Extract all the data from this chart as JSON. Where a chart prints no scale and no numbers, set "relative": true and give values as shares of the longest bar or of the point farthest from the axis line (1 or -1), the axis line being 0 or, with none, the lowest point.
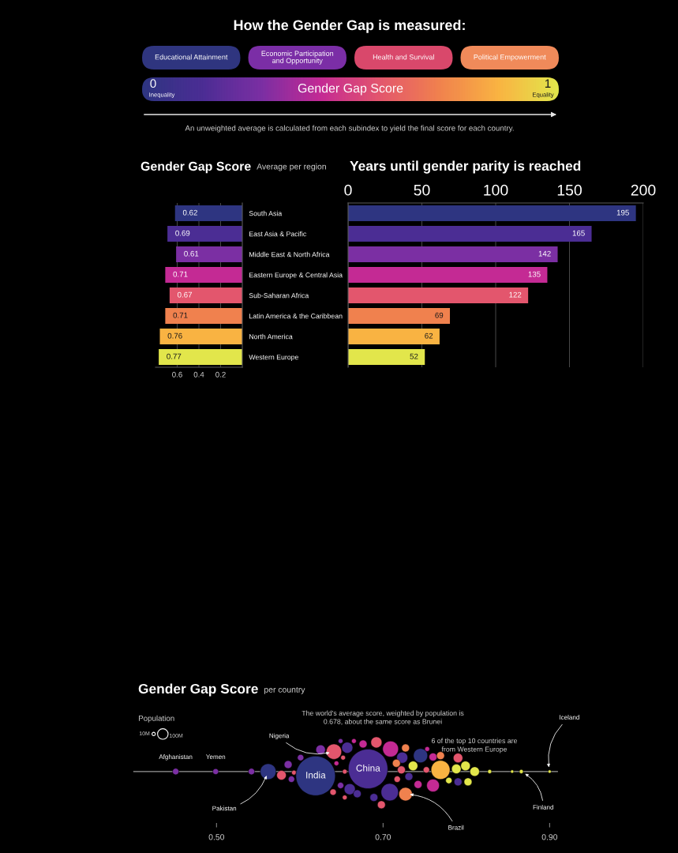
{
  "chart_data": [
    {
      "type": "other",
      "title": "How the Gender Gap is measured:",
      "categories": [
        "Educational Attainment",
        "Economic Participation\nand Opportunity",
        "Health and Survival",
        "Political Empowerment"
      ],
      "colors": [
        "#2f357f",
        "#7b2ea6",
        "#d9486b",
        "#f08a5a"
      ],
      "annotations": [
        "0",
        "Inequality",
        "Gender Gap Score",
        "1",
        "Equality",
        "An unweighted average is calculated from each subindex to yield the final score for each country."
      ]
    },
    {
      "type": "bar",
      "orientation": "horizontal",
      "title": "Gender Gap Score",
      "subtitle": "Average per region",
      "categories": [
        "South Asia",
        "East Asia & Pacific",
        "Middle East & North Africa",
        "Eastern Europe & Central Asia",
        "Sub-Saharan Africa",
        "Latin America & the Caribbean",
        "North America",
        "Western Europe"
      ],
      "values": [
        0.62,
        0.69,
        0.61,
        0.71,
        0.67,
        0.71,
        0.76,
        0.77
      ],
      "colors": [
        "#2e3581",
        "#4b2d94",
        "#7b2fa3",
        "#c42a94",
        "#e3566d",
        "#f0814e",
        "#f9b342",
        "#e2e64b"
      ],
      "xlim": [
        0.8,
        0
      ],
      "xticks": [
        0.6,
        0.4,
        0.2
      ],
      "grid": "x",
      "data_labels": true
    },
    {
      "type": "bar",
      "orientation": "horizontal",
      "title": "Years until gender parity is reached",
      "categories": [
        null,
        null,
        null,
        null,
        null,
        null,
        null,
        null
      ],
      "values": [
        195,
        165,
        142,
        135,
        122,
        69,
        62,
        52
      ],
      "colors": [
        "#2e3581",
        "#4b2d94",
        "#7b2fa3",
        "#c42a94",
        "#e3566d",
        "#f0814e",
        "#f9b342",
        "#e2e64b"
      ],
      "xlim": [
        0,
        200
      ],
      "xticks": [
        0,
        50,
        100,
        150,
        200
      ],
      "grid": "x",
      "data_labels": true
    },
    {
      "type": "bubble",
      "title": "Gender Gap Score",
      "subtitle": "per country",
      "relative": true,
      "tick_labels": "x",
      "legend_title": "Population",
      "size_legend": [
        {
          "value": 10,
          "label": "10M"
        },
        {
          "value": 100,
          "label": "100M"
        }
      ],
      "x": [
        0.451,
        0.499,
        0.542,
        0.562,
        0.578,
        0.586,
        0.59,
        0.601,
        0.593,
        0.619,
        0.641,
        0.625,
        0.649,
        0.657,
        0.652,
        0.644,
        0.654,
        0.64,
        0.649,
        0.66,
        0.654,
        0.669,
        0.682,
        0.692,
        0.676,
        0.665,
        0.709,
        0.727,
        0.723,
        0.745,
        0.708,
        0.727,
        0.689,
        0.698,
        0.716,
        0.717,
        0.731,
        0.736,
        0.742,
        0.752,
        0.76,
        0.76,
        0.769,
        0.753,
        0.769,
        0.79,
        0.788,
        0.799,
        0.81,
        0.802,
        0.79,
        0.779,
        0.828,
        0.855,
        0.866,
        0.9,
        0.722
      ],
      "values": [
        0,
        0,
        0,
        0,
        -0.11,
        0.21,
        -0.23,
        0.42,
        -0.03,
        -0.13,
        0.6,
        0.66,
        0.92,
        0.72,
        0.42,
        0.25,
        0,
        -0.62,
        -0.42,
        -0.53,
        -0.78,
        -0.67,
        0.08,
        0.88,
        0.83,
        0.92,
        0.68,
        0.71,
        0.42,
        0.48,
        -0.62,
        -0.68,
        -0.78,
        -1,
        0.25,
        -0.23,
        -0.15,
        0.17,
        -0.39,
        0.05,
        -0.42,
        0.44,
        0.05,
        0.68,
        0.48,
        0.41,
        0.08,
        0.17,
        0,
        -0.31,
        -0.31,
        -0.27,
        0,
        0,
        0,
        0,
        0.05
      ],
      "sizes": [
        36,
        30,
        36,
        223,
        80,
        56,
        36,
        36,
        20,
        1390,
        210,
        80,
        20,
        109,
        20,
        20,
        20,
        36,
        36,
        109,
        20,
        56,
        1390,
        109,
        56,
        20,
        223,
        56,
        109,
        180,
        270,
        160,
        56,
        56,
        56,
        36,
        56,
        80,
        56,
        36,
        143,
        56,
        320,
        20,
        56,
        80,
        80,
        80,
        80,
        56,
        56,
        36,
        14,
        9,
        14,
        9,
        56
      ],
      "colors": [
        "#7b2fa3",
        "#7b2fa3",
        "#7b2fa3",
        "#2e3581",
        "#e3566d",
        "#7b2fa3",
        "#7b2fa3",
        "#7b2fa3",
        "#e3566d",
        "#2e3581",
        "#e3566d",
        "#7b2fa3",
        "#7b2fa3",
        "#4b2d94",
        "#e3566d",
        "#c42a94",
        "#e3566d",
        "#e3566d",
        "#7b2fa3",
        "#4b2d94",
        "#e3566d",
        "#4b2d94",
        "#4b2d94",
        "#e3566d",
        "#c42a94",
        "#c42a94",
        "#c42a94",
        "#f0814e",
        "#4b2d94",
        "#2e3581",
        "#4b2d94",
        "#f0814e",
        "#4b2d94",
        "#e3566d",
        "#f0814e",
        "#e3566d",
        "#4b2d94",
        "#e2e64b",
        "#c42a94",
        "#e3566d",
        "#c42a94",
        "#c42a94",
        "#f9b342",
        "#c42a94",
        "#f0814e",
        "#e3566d",
        "#e2e64b",
        "#e2e64b",
        "#e2e64b",
        "#e2e64b",
        "#4b2d94",
        "#e2e64b",
        "#e2e64b",
        "#e2e64b",
        "#e2e64b",
        "#e2e64b",
        "#e3566d"
      ],
      "xlim": [
        0.4,
        0.91
      ],
      "xticks": [
        {
          "value": 0.5,
          "label": "0.50"
        },
        {
          "value": 0.7,
          "label": "0.70"
        },
        {
          "value": 0.9,
          "label": "0.90"
        }
      ],
      "annotations": [
        "The world's average score, weighted by population is\n0.678, about the same score as Brunei",
        "6 of the top 10 countries are\nfrom Western Europe",
        {
          "text": "Afghanistan",
          "x": 0.451,
          "y": 0
        },
        {
          "text": "Yemen",
          "x": 0.499,
          "y": 0
        },
        {
          "text": "Pakistan",
          "x": 0.562,
          "y": 0
        },
        {
          "text": "Nigeria",
          "x": 0.641,
          "y": 0.6
        },
        {
          "text": "India",
          "x": 0.619,
          "y": -0.13
        },
        {
          "text": "China",
          "x": 0.682,
          "y": 0.08
        },
        {
          "text": "Brazil",
          "x": 0.727,
          "y": -0.68
        },
        {
          "text": "Finland",
          "x": 0.866,
          "y": 0
        },
        {
          "text": "Iceland",
          "x": 0.9,
          "y": 0
        }
      ]
    }
  ]
}
